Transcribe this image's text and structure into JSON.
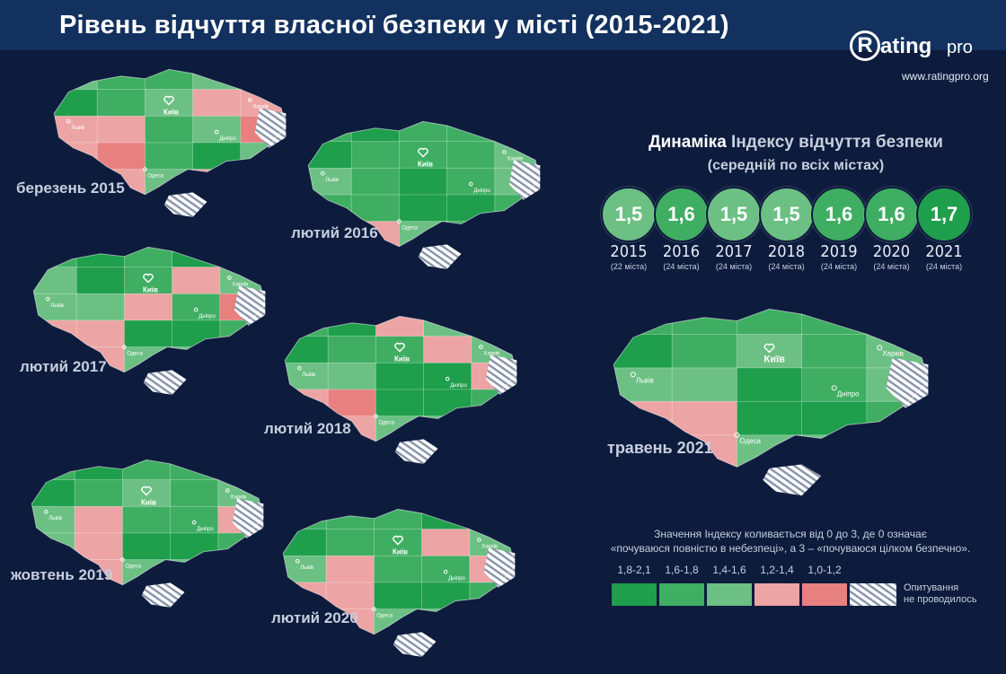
{
  "header": {
    "title": "Рівень відчуття власної безпеки у місті (2015-2021)"
  },
  "logo": {
    "mark": "R",
    "word": "ating",
    "suffix": "pro",
    "url": "www.ratingpro.org"
  },
  "colors": {
    "background": "#0d1b3d",
    "title_bar": "#13315f",
    "scale": [
      "#1f9e4c",
      "#3fae62",
      "#6cc083",
      "#eda4a4",
      "#e88080"
    ],
    "no_survey": "#8793a8"
  },
  "maps": [
    {
      "caption": "березень 2015",
      "regions": [
        2,
        1,
        1,
        2,
        1,
        0,
        1,
        2,
        3,
        3,
        3,
        3,
        1,
        2,
        4,
        3,
        4,
        1,
        0,
        2,
        4,
        3,
        2,
        3,
        5
      ]
    },
    {
      "caption": "лютий 2016",
      "regions": [
        1,
        0,
        1,
        1,
        0,
        0,
        1,
        1,
        1,
        2,
        2,
        1,
        0,
        1,
        2,
        1,
        1,
        0,
        0,
        1,
        3,
        3,
        2,
        1,
        5
      ]
    },
    {
      "caption": "лютий 2017",
      "regions": [
        1,
        0,
        1,
        0,
        0,
        2,
        0,
        1,
        3,
        2,
        2,
        2,
        3,
        1,
        4,
        3,
        3,
        0,
        0,
        1,
        3,
        3,
        2,
        2,
        5
      ]
    },
    {
      "caption": "лютий 2018",
      "regions": [
        1,
        0,
        3,
        2,
        0,
        0,
        1,
        1,
        3,
        2,
        2,
        2,
        0,
        0,
        3,
        3,
        4,
        0,
        0,
        1,
        3,
        3,
        2,
        2,
        5
      ]
    },
    {
      "caption": "жовтень 2019",
      "regions": [
        1,
        0,
        1,
        1,
        0,
        0,
        1,
        2,
        1,
        2,
        2,
        3,
        1,
        1,
        3,
        2,
        3,
        0,
        0,
        1,
        3,
        3,
        2,
        2,
        5
      ]
    },
    {
      "caption": "лютий 2020",
      "regions": [
        1,
        1,
        1,
        0,
        0,
        0,
        1,
        1,
        3,
        2,
        2,
        3,
        1,
        1,
        3,
        3,
        3,
        0,
        0,
        1,
        3,
        3,
        2,
        2,
        5
      ]
    },
    {
      "caption": "травень 2021",
      "regions": [
        1,
        1,
        1,
        1,
        1,
        0,
        1,
        2,
        1,
        2,
        2,
        2,
        0,
        1,
        2,
        3,
        3,
        0,
        0,
        1,
        3,
        3,
        2,
        2,
        5
      ]
    }
  ],
  "map_labels": {
    "kyiv": "Київ",
    "kharkiv": "Харків",
    "lviv": "Львів",
    "odesa": "Одеса",
    "dnipro": "Дніпро"
  },
  "chart_data": {
    "type": "bubble-row",
    "title_a": "Динаміка",
    "title_b": "Індексу відчуття безпеки",
    "subtitle": "(середній по всіх містах)",
    "years": [
      "2015",
      "2016",
      "2017",
      "2018",
      "2019",
      "2020",
      "2021"
    ],
    "values": [
      1.5,
      1.6,
      1.5,
      1.5,
      1.6,
      1.6,
      1.7
    ],
    "value_labels": [
      "1,5",
      "1,6",
      "1,5",
      "1,5",
      "1,6",
      "1,6",
      "1,7"
    ],
    "cities": [
      "(22 міста)",
      "(24 міста)",
      "(24 міста)",
      "(24 міста)",
      "(24 міста)",
      "(24 міста)",
      "(24 міста)"
    ],
    "circle_color_index": [
      2,
      1,
      2,
      2,
      1,
      1,
      0
    ]
  },
  "note": {
    "line1": "Значення Індексу коливається від 0 до 3, де 0 означає",
    "line2": "«почуваюся повністю в небезпеці», а 3 – «почуваюся цілком безпечно»."
  },
  "legend": {
    "ranges": [
      "1,8-2,1",
      "1,6-1,8",
      "1,4-1,6",
      "1,2-1,4",
      "1,0-1,2"
    ],
    "no_survey_line1": "Опитування",
    "no_survey_line2": "не проводилось"
  }
}
